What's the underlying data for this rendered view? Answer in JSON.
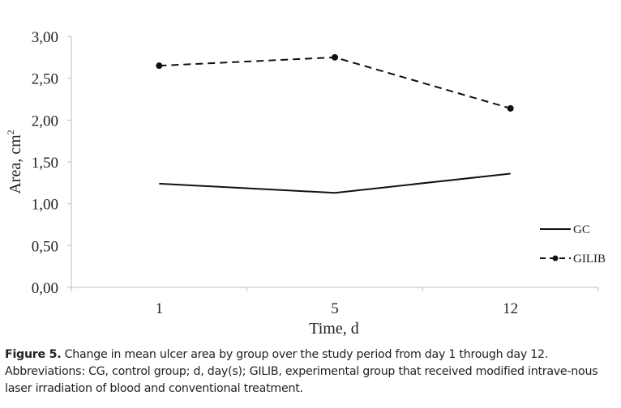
{
  "chart_data": {
    "type": "line",
    "categories": [
      "1",
      "5",
      "12"
    ],
    "series": [
      {
        "name": "GC",
        "values": [
          1.24,
          1.13,
          1.36
        ],
        "style": "solid",
        "color": "#111111",
        "markers": false
      },
      {
        "name": "GILIB",
        "values": [
          2.65,
          2.75,
          2.14
        ],
        "style": "dashed",
        "color": "#111111",
        "markers": true
      }
    ],
    "yticks": [
      "0,00",
      "0,50",
      "1,00",
      "1,50",
      "2,00",
      "2,50",
      "3,00"
    ],
    "ylim": [
      0,
      3
    ],
    "xlabel": "Time, d",
    "ylabel": "Area, cm",
    "ylabel_superscript": "2",
    "grid": false,
    "legend_position": "right"
  },
  "caption": {
    "label": "Figure 5.",
    "text": " Change in mean ulcer area by group over the study period from day 1 through day 12. Abbreviations: CG, control group; d, day(s); GILIB, experimental group that received modified intrave-nous laser irradiation of blood and conventional treatment."
  }
}
